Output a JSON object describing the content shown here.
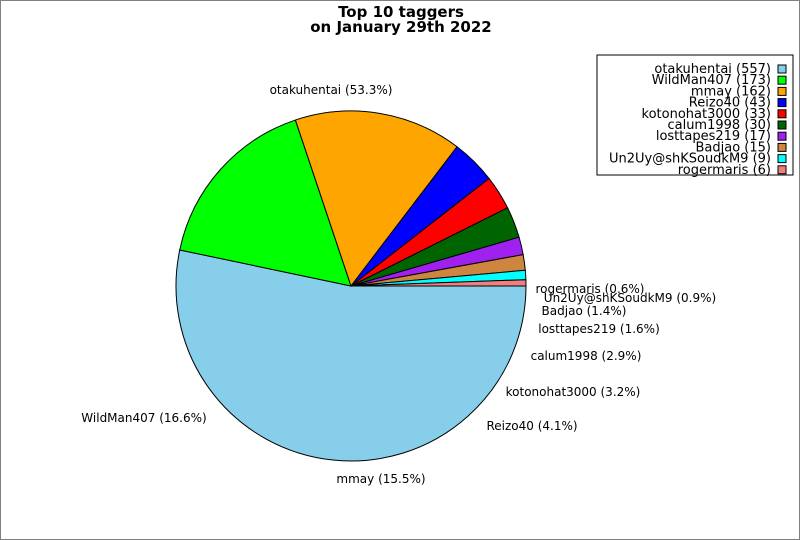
{
  "chart_data": {
    "type": "pie",
    "title": [
      "Top 10 taggers",
      "on January 29th 2022"
    ],
    "slices": [
      {
        "name": "otakuhentai",
        "value": 557,
        "percent_label": "otakuhentai (53.3%)",
        "legend_label": "otakuhentai (557)",
        "color": "#87CEEB"
      },
      {
        "name": "WildMan407",
        "value": 173,
        "percent_label": "WildMan407 (16.6%)",
        "legend_label": "WildMan407 (173)",
        "color": "#00FF00"
      },
      {
        "name": "mmay",
        "value": 162,
        "percent_label": "mmay (15.5%)",
        "legend_label": "mmay (162)",
        "color": "#FFA500"
      },
      {
        "name": "Reizo40",
        "value": 43,
        "percent_label": "Reizo40 (4.1%)",
        "legend_label": "Reizo40 (43)",
        "color": "#0000FF"
      },
      {
        "name": "kotonohat3000",
        "value": 33,
        "percent_label": "kotonohat3000 (3.2%)",
        "legend_label": "kotonohat3000 (33)",
        "color": "#FF0000"
      },
      {
        "name": "calum1998",
        "value": 30,
        "percent_label": "calum1998 (2.9%)",
        "legend_label": "calum1998 (30)",
        "color": "#006400"
      },
      {
        "name": "losttapes219",
        "value": 17,
        "percent_label": "losttapes219 (1.6%)",
        "legend_label": "losttapes219 (17)",
        "color": "#A020F0"
      },
      {
        "name": "Badjao",
        "value": 15,
        "percent_label": "Badjao (1.4%)",
        "legend_label": "Badjao (15)",
        "color": "#CD853F"
      },
      {
        "name": "Un2Uy@shKSoudkM9",
        "value": 9,
        "percent_label": "Un2Uy@shKSoudkM9 (0.9%)",
        "legend_label": "Un2Uy@shKSoudkM9 (9)",
        "color": "#00FFFF"
      },
      {
        "name": "rogermaris",
        "value": 6,
        "percent_label": "rogermaris (0.6%)",
        "legend_label": "rogermaris (6)",
        "color": "#F08080"
      }
    ],
    "start_angle": "3 o'clock",
    "direction": "clockwise",
    "legend": "top-right"
  }
}
